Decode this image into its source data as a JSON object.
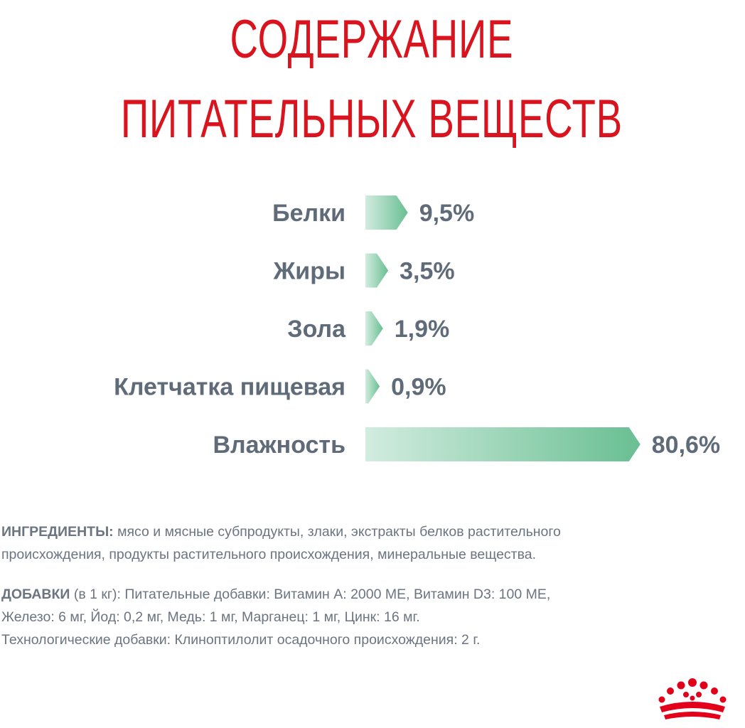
{
  "title": {
    "line1": "СОДЕРЖАНИЕ",
    "line2": "ПИТАТЕЛЬНЫХ ВЕЩЕСТВ"
  },
  "chart_data": {
    "type": "bar",
    "orientation": "horizontal",
    "categories": [
      "Белки",
      "Жиры",
      "Зола",
      "Клетчатка пищевая",
      "Влажность"
    ],
    "values": [
      9.5,
      3.5,
      1.9,
      0.9,
      80.6
    ],
    "value_labels": [
      "9,5%",
      "3,5%",
      "1,9%",
      "0,9%",
      "80,6%"
    ],
    "unit": "%",
    "bar_color_start": "#d2ece0",
    "bar_color_end": "#69bf92",
    "label_color": "#5f6b78"
  },
  "ingredients": {
    "heading": "ИНГРЕДИЕНТЫ:",
    "text_line1": " мясо и мясные субпродукты, злаки, экстракты белков растительного",
    "text_line2": "происхождения, продукты растительного происхождения, минеральные вещества."
  },
  "additives": {
    "heading": "ДОБАВКИ",
    "line1": " (в 1 кг): Питательные добавки: Витамин А: 2000 МЕ, Витамин D3: 100 МЕ,",
    "line2": "Железо: 6 мг, Йод: 0,2 мг, Медь: 1 мг, Марганец: 1 мг, Цинк: 16 мг.",
    "line3": "Технологические добавки: Клиноптилолит осадочного происхождения: 2 г."
  },
  "colors": {
    "title": "#d9141e",
    "text": "#6b7480",
    "logo": "#e2001a"
  },
  "logo": {
    "icon": "crown-icon"
  }
}
